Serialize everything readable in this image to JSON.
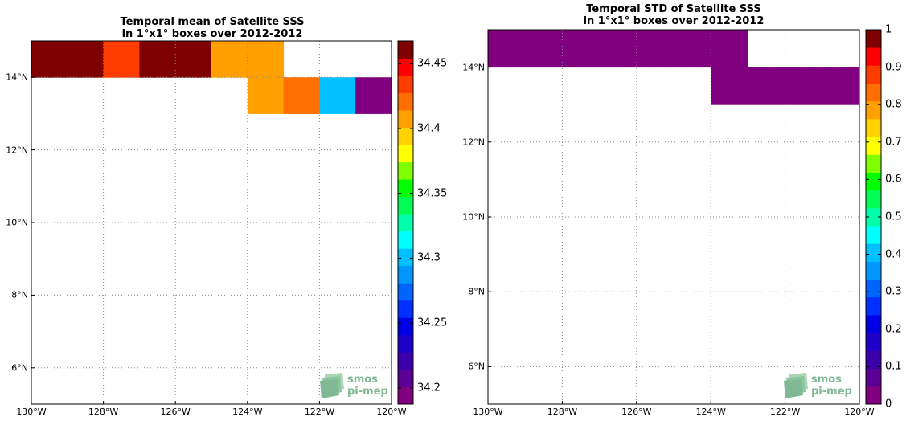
{
  "panels": [
    {
      "id": "mean",
      "title_line1": "Temporal mean of Satellite SSS",
      "title_line2": "in 1°x1° boxes over 2012-2012",
      "colorbar": {
        "min": 34.1875,
        "max": 34.4675,
        "nlevels": 21,
        "ticks": [
          34.2,
          34.25,
          34.3,
          34.35,
          34.4,
          34.45
        ],
        "tick_labels": [
          "34.2",
          "34.25",
          "34.3",
          "34.35",
          "34.4",
          "34.45"
        ]
      },
      "cells": [
        {
          "lon": -130,
          "lat": 14,
          "value": 34.46
        },
        {
          "lon": -129,
          "lat": 14,
          "value": 34.46
        },
        {
          "lon": -128,
          "lat": 14,
          "value": 34.44
        },
        {
          "lon": -127,
          "lat": 14,
          "value": 34.46
        },
        {
          "lon": -126,
          "lat": 14,
          "value": 34.46
        },
        {
          "lon": -125,
          "lat": 14,
          "value": 34.405
        },
        {
          "lon": -124,
          "lat": 14,
          "value": 34.405
        },
        {
          "lon": -124,
          "lat": 13,
          "value": 34.405
        },
        {
          "lon": -123,
          "lat": 13,
          "value": 34.42
        },
        {
          "lon": -122,
          "lat": 13,
          "value": 34.295
        },
        {
          "lon": -121,
          "lat": 13,
          "value": 34.19
        }
      ]
    },
    {
      "id": "std",
      "title_line1": "Temporal STD of Satellite SSS",
      "title_line2": "in 1°x1° boxes over 2012-2012",
      "colorbar": {
        "min": 0,
        "max": 1,
        "nlevels": 21,
        "ticks": [
          0,
          0.1,
          0.2,
          0.3,
          0.4,
          0.5,
          0.6,
          0.7,
          0.8,
          0.9,
          1
        ],
        "tick_labels": [
          "0",
          "0.1",
          "0.2",
          "0.3",
          "0.4",
          "0.5",
          "0.6",
          "0.7",
          "0.8",
          "0.9",
          "1"
        ]
      },
      "cells": [
        {
          "lon": -130,
          "lat": 14,
          "value": 0.0
        },
        {
          "lon": -129,
          "lat": 14,
          "value": 0.0
        },
        {
          "lon": -128,
          "lat": 14,
          "value": 0.0
        },
        {
          "lon": -127,
          "lat": 14,
          "value": 0.0
        },
        {
          "lon": -126,
          "lat": 14,
          "value": 0.0
        },
        {
          "lon": -125,
          "lat": 14,
          "value": 0.0
        },
        {
          "lon": -124,
          "lat": 14,
          "value": 0.0
        },
        {
          "lon": -124,
          "lat": 13,
          "value": 0.0
        },
        {
          "lon": -123,
          "lat": 13,
          "value": 0.0
        },
        {
          "lon": -122,
          "lat": 13,
          "value": 0.0
        },
        {
          "lon": -121,
          "lat": 13,
          "value": 0.0
        }
      ]
    }
  ],
  "map": {
    "lon_range": [
      -130,
      -120
    ],
    "lat_range": [
      5,
      15
    ],
    "lon_ticks": [
      -130,
      -128,
      -126,
      -124,
      -122,
      -120
    ],
    "lon_tick_labels": [
      "130°W",
      "128°W",
      "126°W",
      "124°W",
      "122°W",
      "120°W"
    ],
    "lat_ticks": [
      6,
      8,
      10,
      12,
      14
    ],
    "lat_tick_labels": [
      "6°N",
      "8°N",
      "10°N",
      "12°N",
      "14°N"
    ]
  },
  "logo": {
    "line1": "smos",
    "line2": "pi-mep",
    "color": "#7fb893"
  },
  "colormap": [
    "#800080",
    "#5a0096",
    "#3c00aa",
    "#1e00c8",
    "#0000e6",
    "#0030ff",
    "#0064ff",
    "#0096ff",
    "#00c0ff",
    "#00ffff",
    "#00ffaa",
    "#00ff55",
    "#00ff00",
    "#80ff00",
    "#ffff00",
    "#ffd200",
    "#ffa000",
    "#ff6e00",
    "#ff3c00",
    "#ff0000",
    "#7f0000"
  ]
}
